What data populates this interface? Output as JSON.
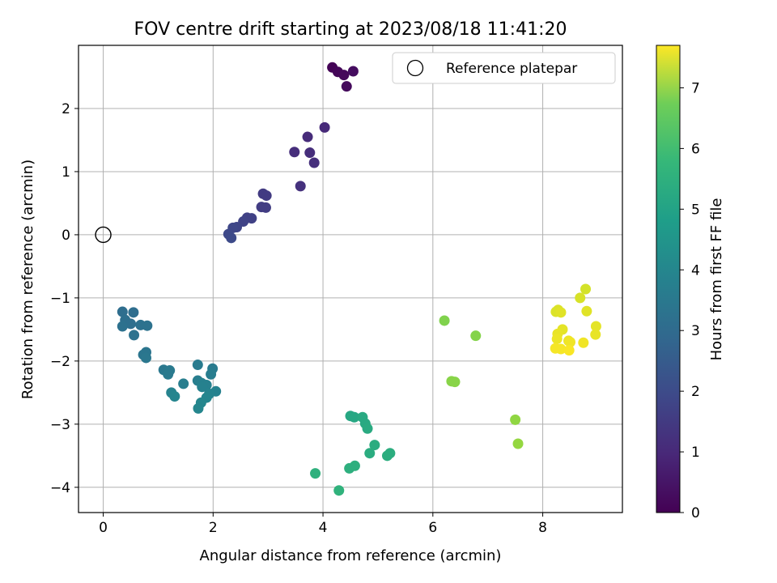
{
  "chart_data": {
    "type": "scatter",
    "title": "FOV centre drift starting at 2023/08/18 11:41:20",
    "xlabel": "Angular distance from reference (arcmin)",
    "ylabel": "Rotation from reference (arcmin)",
    "xlim": [
      -0.45,
      9.45
    ],
    "ylim": [
      -4.4,
      3.0
    ],
    "x_ticks": [
      0,
      2,
      4,
      6,
      8
    ],
    "y_ticks": [
      -4,
      -3,
      -2,
      -1,
      0,
      1,
      2
    ],
    "grid": true,
    "legend": {
      "position": "top-right",
      "entries": [
        "Reference platepar"
      ]
    },
    "colorbar": {
      "label": "Hours from first FF file",
      "colormap": "viridis",
      "range": [
        0,
        7.7
      ],
      "ticks": [
        0,
        1,
        2,
        3,
        4,
        5,
        6,
        7
      ]
    },
    "reference_point": {
      "x": 0,
      "y": 0
    },
    "points": [
      {
        "x": 4.17,
        "y": 2.65,
        "h": 0.05
      },
      {
        "x": 4.27,
        "y": 2.58,
        "h": 0.1
      },
      {
        "x": 4.38,
        "y": 2.53,
        "h": 0.15
      },
      {
        "x": 4.43,
        "y": 2.35,
        "h": 0.2
      },
      {
        "x": 4.55,
        "y": 2.59,
        "h": 0.25
      },
      {
        "x": 4.03,
        "y": 1.7,
        "h": 0.9
      },
      {
        "x": 3.72,
        "y": 1.55,
        "h": 0.95
      },
      {
        "x": 3.48,
        "y": 1.31,
        "h": 1.0
      },
      {
        "x": 3.76,
        "y": 1.3,
        "h": 1.0
      },
      {
        "x": 3.84,
        "y": 1.14,
        "h": 1.05
      },
      {
        "x": 3.59,
        "y": 0.77,
        "h": 1.1
      },
      {
        "x": 2.91,
        "y": 0.65,
        "h": 1.35
      },
      {
        "x": 2.97,
        "y": 0.62,
        "h": 1.35
      },
      {
        "x": 2.88,
        "y": 0.44,
        "h": 1.4
      },
      {
        "x": 2.96,
        "y": 0.43,
        "h": 1.4
      },
      {
        "x": 2.62,
        "y": 0.27,
        "h": 1.5
      },
      {
        "x": 2.7,
        "y": 0.26,
        "h": 1.5
      },
      {
        "x": 2.55,
        "y": 0.21,
        "h": 1.55
      },
      {
        "x": 2.43,
        "y": 0.12,
        "h": 1.6
      },
      {
        "x": 2.36,
        "y": 0.11,
        "h": 1.65
      },
      {
        "x": 2.28,
        "y": 0.01,
        "h": 1.7
      },
      {
        "x": 2.33,
        "y": -0.05,
        "h": 1.75
      },
      {
        "x": 0.35,
        "y": -1.22,
        "h": 2.75
      },
      {
        "x": 0.55,
        "y": -1.23,
        "h": 2.75
      },
      {
        "x": 0.4,
        "y": -1.35,
        "h": 2.8
      },
      {
        "x": 0.5,
        "y": -1.41,
        "h": 2.8
      },
      {
        "x": 0.35,
        "y": -1.45,
        "h": 2.85
      },
      {
        "x": 0.68,
        "y": -1.43,
        "h": 2.85
      },
      {
        "x": 0.8,
        "y": -1.44,
        "h": 2.9
      },
      {
        "x": 0.56,
        "y": -1.59,
        "h": 2.9
      },
      {
        "x": 0.78,
        "y": -1.86,
        "h": 3.0
      },
      {
        "x": 0.73,
        "y": -1.9,
        "h": 3.0
      },
      {
        "x": 0.78,
        "y": -1.95,
        "h": 3.05
      },
      {
        "x": 1.1,
        "y": -2.14,
        "h": 3.1
      },
      {
        "x": 1.21,
        "y": -2.15,
        "h": 3.15
      },
      {
        "x": 1.18,
        "y": -2.21,
        "h": 3.15
      },
      {
        "x": 1.72,
        "y": -2.06,
        "h": 3.2
      },
      {
        "x": 1.99,
        "y": -2.12,
        "h": 3.2
      },
      {
        "x": 1.96,
        "y": -2.21,
        "h": 3.25
      },
      {
        "x": 1.46,
        "y": -2.36,
        "h": 3.3
      },
      {
        "x": 1.72,
        "y": -2.31,
        "h": 3.3
      },
      {
        "x": 1.79,
        "y": -2.35,
        "h": 3.35
      },
      {
        "x": 1.88,
        "y": -2.38,
        "h": 3.35
      },
      {
        "x": 1.8,
        "y": -2.41,
        "h": 3.4
      },
      {
        "x": 2.05,
        "y": -2.48,
        "h": 3.4
      },
      {
        "x": 1.93,
        "y": -2.52,
        "h": 3.45
      },
      {
        "x": 1.24,
        "y": -2.5,
        "h": 3.45
      },
      {
        "x": 1.3,
        "y": -2.56,
        "h": 3.5
      },
      {
        "x": 1.88,
        "y": -2.58,
        "h": 3.5
      },
      {
        "x": 1.78,
        "y": -2.66,
        "h": 3.55
      },
      {
        "x": 1.73,
        "y": -2.75,
        "h": 3.55
      },
      {
        "x": 4.5,
        "y": -2.87,
        "h": 4.6
      },
      {
        "x": 4.57,
        "y": -2.89,
        "h": 4.6
      },
      {
        "x": 4.72,
        "y": -2.89,
        "h": 4.65
      },
      {
        "x": 4.77,
        "y": -2.99,
        "h": 4.65
      },
      {
        "x": 4.81,
        "y": -3.07,
        "h": 4.7
      },
      {
        "x": 4.94,
        "y": -3.33,
        "h": 4.75
      },
      {
        "x": 4.85,
        "y": -3.46,
        "h": 4.75
      },
      {
        "x": 5.22,
        "y": -3.46,
        "h": 4.8
      },
      {
        "x": 5.17,
        "y": -3.5,
        "h": 4.8
      },
      {
        "x": 4.58,
        "y": -3.66,
        "h": 4.85
      },
      {
        "x": 4.48,
        "y": -3.7,
        "h": 4.85
      },
      {
        "x": 3.86,
        "y": -3.78,
        "h": 4.9
      },
      {
        "x": 4.29,
        "y": -4.05,
        "h": 4.95
      },
      {
        "x": 6.21,
        "y": -1.36,
        "h": 6.2
      },
      {
        "x": 6.78,
        "y": -1.6,
        "h": 6.25
      },
      {
        "x": 6.34,
        "y": -2.32,
        "h": 6.3
      },
      {
        "x": 6.4,
        "y": -2.33,
        "h": 6.3
      },
      {
        "x": 7.5,
        "y": -2.93,
        "h": 6.4
      },
      {
        "x": 7.55,
        "y": -3.31,
        "h": 6.45
      },
      {
        "x": 8.78,
        "y": -0.86,
        "h": 7.2
      },
      {
        "x": 8.68,
        "y": -1.0,
        "h": 7.25
      },
      {
        "x": 8.28,
        "y": -1.19,
        "h": 7.3
      },
      {
        "x": 8.24,
        "y": -1.22,
        "h": 7.3
      },
      {
        "x": 8.33,
        "y": -1.23,
        "h": 7.35
      },
      {
        "x": 8.8,
        "y": -1.21,
        "h": 7.35
      },
      {
        "x": 8.97,
        "y": -1.45,
        "h": 7.4
      },
      {
        "x": 8.36,
        "y": -1.5,
        "h": 7.4
      },
      {
        "x": 8.27,
        "y": -1.57,
        "h": 7.45
      },
      {
        "x": 8.96,
        "y": -1.58,
        "h": 7.45
      },
      {
        "x": 8.26,
        "y": -1.65,
        "h": 7.5
      },
      {
        "x": 8.47,
        "y": -1.68,
        "h": 7.5
      },
      {
        "x": 8.5,
        "y": -1.7,
        "h": 7.55
      },
      {
        "x": 8.74,
        "y": -1.71,
        "h": 7.55
      },
      {
        "x": 8.23,
        "y": -1.8,
        "h": 7.6
      },
      {
        "x": 8.33,
        "y": -1.81,
        "h": 7.6
      },
      {
        "x": 8.48,
        "y": -1.83,
        "h": 7.65
      }
    ]
  }
}
